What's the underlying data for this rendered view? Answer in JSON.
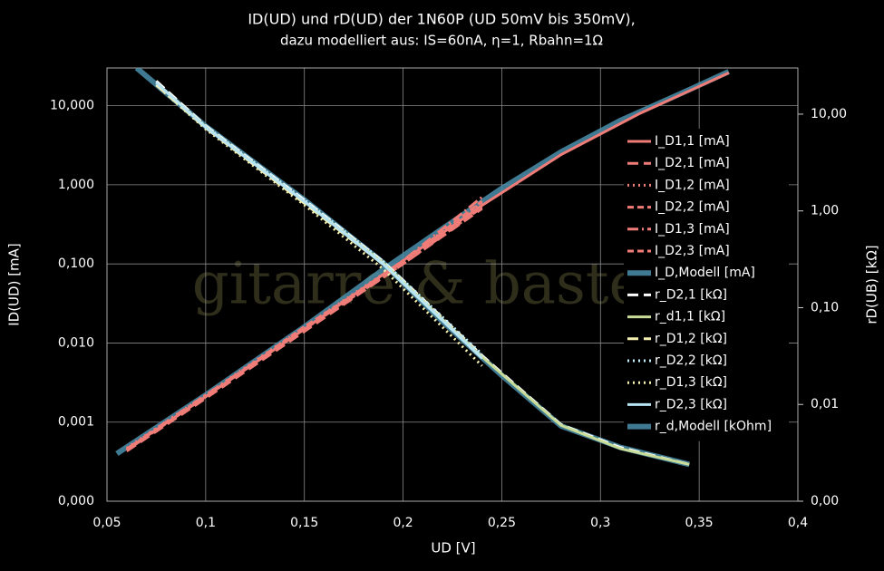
{
  "chart_data": {
    "type": "line",
    "title": "ID(UD) und rD(UD) der 1N60P (UD 50mV bis 350mV),",
    "subtitle": "dazu modelliert aus: IS=60nA, η=1, Rbahn=1Ω",
    "watermark": "gitarre & bastelei",
    "x_label": "UD [V]",
    "y_label": "ID(UD) [mA]",
    "y2_label": "rD(UB) [kΩ]",
    "xlim": [
      0.05,
      0.4
    ],
    "xticks": [
      {
        "value": 0.05,
        "label": "0,05"
      },
      {
        "value": 0.1,
        "label": "0,1"
      },
      {
        "value": 0.15,
        "label": "0,15"
      },
      {
        "value": 0.2,
        "label": "0,2"
      },
      {
        "value": 0.25,
        "label": "0,25"
      },
      {
        "value": 0.3,
        "label": "0,3"
      },
      {
        "value": 0.35,
        "label": "0,35"
      },
      {
        "value": 0.4,
        "label": "0,4"
      }
    ],
    "ylim": [
      0.0001,
      30
    ],
    "ylog": true,
    "yticks": [
      {
        "value": 0.0001,
        "label": "0,000"
      },
      {
        "value": 0.001,
        "label": "0,001"
      },
      {
        "value": 0.01,
        "label": "0,010"
      },
      {
        "value": 0.1,
        "label": "0,100"
      },
      {
        "value": 1,
        "label": "1,000"
      },
      {
        "value": 10,
        "label": "10,000"
      }
    ],
    "y2lim": [
      0.001,
      30
    ],
    "y2log": true,
    "y2ticks": [
      {
        "value": 0.001,
        "label": "0,00"
      },
      {
        "value": 0.01,
        "label": "0,01"
      },
      {
        "value": 0.1,
        "label": "0,10"
      },
      {
        "value": 1,
        "label": "1,00"
      },
      {
        "value": 10,
        "label": "10,00"
      }
    ],
    "grid": true,
    "legend": "right",
    "series": [
      {
        "name": "I_D1,1 [mA]",
        "color": "#f07c78",
        "dash": "solid",
        "x": [
          0.06,
          0.1,
          0.15,
          0.2,
          0.24,
          0.28,
          0.32,
          0.365
        ],
        "values": [
          0.00045,
          0.0021,
          0.015,
          0.11,
          0.55,
          2.4,
          8,
          26
        ]
      },
      {
        "name": "I_D2,1 [mA]",
        "color": "#f07c78",
        "dash": "dashed",
        "x": [
          0.06,
          0.1,
          0.15,
          0.2,
          0.24
        ],
        "values": [
          0.00043,
          0.002,
          0.014,
          0.1,
          0.5
        ]
      },
      {
        "name": "I_D1,2 [mA]",
        "color": "#f07c78",
        "dash": "dotted",
        "x": [
          0.06,
          0.1,
          0.15,
          0.2,
          0.24
        ],
        "values": [
          0.00047,
          0.0022,
          0.016,
          0.11,
          0.6
        ]
      },
      {
        "name": "I_D2,2 [mA]",
        "color": "#f07c78",
        "dash": "shortdash",
        "x": [
          0.06,
          0.1,
          0.15,
          0.2,
          0.24
        ],
        "values": [
          0.00044,
          0.0021,
          0.015,
          0.1,
          0.52
        ]
      },
      {
        "name": "I_D1,3 [mA]",
        "color": "#f07c78",
        "dash": "dashdot",
        "x": [
          0.06,
          0.1,
          0.15,
          0.2,
          0.24
        ],
        "values": [
          0.00046,
          0.0022,
          0.015,
          0.11,
          0.7
        ]
      },
      {
        "name": "I_D2,3 [mA]",
        "color": "#f07c78",
        "dash": "shortdash",
        "x": [
          0.06,
          0.1,
          0.15,
          0.2,
          0.24
        ],
        "values": [
          0.00045,
          0.0021,
          0.016,
          0.105,
          0.62
        ]
      },
      {
        "name": "I_D,Modell [mA]",
        "color": "#4a8fab",
        "dash": "model",
        "x": [
          0.055,
          0.1,
          0.15,
          0.19,
          0.22,
          0.25,
          0.28,
          0.31,
          0.34,
          0.365
        ],
        "values": [
          0.0004,
          0.0022,
          0.016,
          0.085,
          0.28,
          0.9,
          2.6,
          6.5,
          14,
          27
        ]
      },
      {
        "name": "r_D2,1 [kΩ]",
        "color": "#ffffff",
        "dash": "dashed",
        "axis": "y2",
        "x": [
          0.075,
          0.1,
          0.15,
          0.19,
          0.24,
          0.28,
          0.31,
          0.345
        ],
        "values": [
          22,
          7.6,
          1.3,
          0.3,
          0.032,
          0.0062,
          0.0036,
          0.0024
        ]
      },
      {
        "name": "r_d1,1 [kΩ]",
        "color": "#c8dc98",
        "dash": "solid",
        "axis": "y2",
        "x": [
          0.075,
          0.1,
          0.15,
          0.19,
          0.24,
          0.28,
          0.31,
          0.345
        ],
        "values": [
          21,
          7.4,
          1.25,
          0.29,
          0.031,
          0.0061,
          0.0035,
          0.0024
        ]
      },
      {
        "name": "r_D1,2 [kΩ]",
        "color": "#f4f0b0",
        "dash": "dashed",
        "axis": "y2",
        "x": [
          0.075,
          0.1,
          0.15,
          0.19,
          0.24
        ],
        "values": [
          20,
          7.2,
          1.2,
          0.28,
          0.03
        ]
      },
      {
        "name": "r_D2,2 [kΩ]",
        "color": "#bfeefa",
        "dash": "dotted",
        "axis": "y2",
        "x": [
          0.075,
          0.1,
          0.15,
          0.19,
          0.24
        ],
        "values": [
          21,
          7.5,
          1.3,
          0.3,
          0.033
        ]
      },
      {
        "name": "r_D1,3 [kΩ]",
        "color": "#f4f0b0",
        "dash": "dotted",
        "axis": "y2",
        "x": [
          0.075,
          0.1,
          0.15,
          0.19,
          0.24
        ],
        "values": [
          20,
          7,
          1.15,
          0.25,
          0.025
        ]
      },
      {
        "name": "r_D2,3 [kΩ]",
        "color": "#b8e4f4",
        "dash": "solid",
        "axis": "y2",
        "x": [
          0.075,
          0.1,
          0.15,
          0.19,
          0.24
        ],
        "values": [
          21,
          7.3,
          1.25,
          0.28,
          0.03
        ]
      },
      {
        "name": "r_d,Modell [kOhm]",
        "color": "#4a8fab",
        "dash": "model",
        "axis": "y2",
        "x": [
          0.065,
          0.1,
          0.15,
          0.19,
          0.22,
          0.25,
          0.28,
          0.31,
          0.345
        ],
        "values": [
          30,
          7.5,
          1.3,
          0.29,
          0.072,
          0.02,
          0.006,
          0.0036,
          0.0024
        ]
      }
    ]
  }
}
